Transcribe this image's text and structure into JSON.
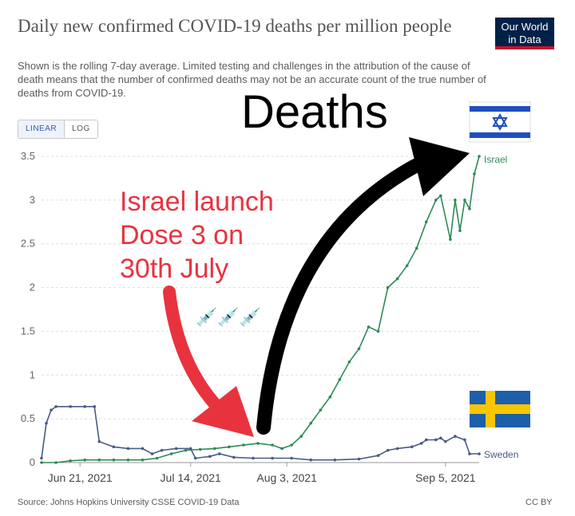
{
  "header": {
    "title": "Daily new confirmed COVID-19 deaths per million people",
    "subtitle": "Shown is the rolling 7-day average. Limited testing and challenges in the attribution of the cause of death means that the number of confirmed deaths may not be an accurate count of the true number of deaths from COVID-19.",
    "logo_line1": "Our World",
    "logo_line2": "in Data"
  },
  "controls": {
    "linear_label": "LINEAR",
    "log_label": "LOG",
    "active": "LINEAR"
  },
  "annotations": {
    "deaths": "Deaths",
    "israel_line1": "Israel launch",
    "israel_line2": "Dose 3 on",
    "israel_line3": "30th July",
    "syringes": "💉💉💉"
  },
  "footer": {
    "source": "Source: Johns Hopkins University CSSE COVID-19 Data",
    "license": "CC BY"
  },
  "chart_data": {
    "type": "line",
    "x_start": "2021-06-13",
    "x_end": "2021-09-09",
    "ylim": [
      0,
      3.5
    ],
    "yticks": [
      0,
      0.5,
      1,
      1.5,
      2,
      2.5,
      3,
      3.5
    ],
    "ytick_labels": [
      "0",
      "0.5",
      "1",
      "1.5",
      "2",
      "2.5",
      "3",
      "3.5"
    ],
    "xticks": [
      {
        "date": "2021-06-21",
        "label": "Jun 21, 2021"
      },
      {
        "date": "2021-07-14",
        "label": "Jul 14, 2021"
      },
      {
        "date": "2021-08-03",
        "label": "Aug 3, 2021"
      },
      {
        "date": "2021-09-05",
        "label": "Sep 5, 2021"
      }
    ],
    "grid": true,
    "colors": {
      "israel": "#2e8b57",
      "sweden": "#4a5a86",
      "annotation_red": "#e8333f",
      "annotation_black": "#000000"
    },
    "series": [
      {
        "name": "Israel",
        "points": [
          [
            "2021-06-13",
            0.0
          ],
          [
            "2021-06-16",
            0.0
          ],
          [
            "2021-06-19",
            0.02
          ],
          [
            "2021-06-22",
            0.03
          ],
          [
            "2021-06-25",
            0.03
          ],
          [
            "2021-06-28",
            0.03
          ],
          [
            "2021-07-01",
            0.03
          ],
          [
            "2021-07-04",
            0.03
          ],
          [
            "2021-07-07",
            0.05
          ],
          [
            "2021-07-10",
            0.1
          ],
          [
            "2021-07-13",
            0.14
          ],
          [
            "2021-07-16",
            0.15
          ],
          [
            "2021-07-19",
            0.16
          ],
          [
            "2021-07-22",
            0.18
          ],
          [
            "2021-07-25",
            0.2
          ],
          [
            "2021-07-28",
            0.22
          ],
          [
            "2021-07-31",
            0.2
          ],
          [
            "2021-08-02",
            0.16
          ],
          [
            "2021-08-04",
            0.2
          ],
          [
            "2021-08-06",
            0.3
          ],
          [
            "2021-08-08",
            0.45
          ],
          [
            "2021-08-10",
            0.6
          ],
          [
            "2021-08-12",
            0.75
          ],
          [
            "2021-08-14",
            0.95
          ],
          [
            "2021-08-16",
            1.15
          ],
          [
            "2021-08-18",
            1.3
          ],
          [
            "2021-08-20",
            1.55
          ],
          [
            "2021-08-22",
            1.5
          ],
          [
            "2021-08-24",
            2.0
          ],
          [
            "2021-08-26",
            2.1
          ],
          [
            "2021-08-28",
            2.25
          ],
          [
            "2021-08-30",
            2.45
          ],
          [
            "2021-09-01",
            2.75
          ],
          [
            "2021-09-03",
            3.0
          ],
          [
            "2021-09-04",
            3.05
          ],
          [
            "2021-09-06",
            2.55
          ],
          [
            "2021-09-07",
            3.0
          ],
          [
            "2021-09-08",
            2.65
          ],
          [
            "2021-09-09",
            3.0
          ],
          [
            "2021-09-10",
            2.9
          ],
          [
            "2021-09-11",
            3.3
          ],
          [
            "2021-09-12",
            3.5
          ]
        ]
      },
      {
        "name": "Sweden",
        "points": [
          [
            "2021-06-13",
            0.05
          ],
          [
            "2021-06-14",
            0.45
          ],
          [
            "2021-06-15",
            0.6
          ],
          [
            "2021-06-16",
            0.64
          ],
          [
            "2021-06-19",
            0.64
          ],
          [
            "2021-06-22",
            0.64
          ],
          [
            "2021-06-24",
            0.64
          ],
          [
            "2021-06-25",
            0.24
          ],
          [
            "2021-06-28",
            0.18
          ],
          [
            "2021-07-01",
            0.16
          ],
          [
            "2021-07-04",
            0.16
          ],
          [
            "2021-07-06",
            0.1
          ],
          [
            "2021-07-08",
            0.14
          ],
          [
            "2021-07-11",
            0.16
          ],
          [
            "2021-07-14",
            0.16
          ],
          [
            "2021-07-15",
            0.05
          ],
          [
            "2021-07-18",
            0.07
          ],
          [
            "2021-07-20",
            0.1
          ],
          [
            "2021-07-23",
            0.06
          ],
          [
            "2021-07-27",
            0.05
          ],
          [
            "2021-07-31",
            0.05
          ],
          [
            "2021-08-04",
            0.05
          ],
          [
            "2021-08-08",
            0.03
          ],
          [
            "2021-08-13",
            0.03
          ],
          [
            "2021-08-18",
            0.04
          ],
          [
            "2021-08-22",
            0.08
          ],
          [
            "2021-08-24",
            0.14
          ],
          [
            "2021-08-26",
            0.16
          ],
          [
            "2021-08-29",
            0.18
          ],
          [
            "2021-08-31",
            0.22
          ],
          [
            "2021-09-01",
            0.26
          ],
          [
            "2021-09-03",
            0.26
          ],
          [
            "2021-09-04",
            0.28
          ],
          [
            "2021-09-05",
            0.24
          ],
          [
            "2021-09-07",
            0.3
          ],
          [
            "2021-09-09",
            0.26
          ],
          [
            "2021-09-10",
            0.1
          ],
          [
            "2021-09-12",
            0.1
          ]
        ]
      }
    ]
  }
}
